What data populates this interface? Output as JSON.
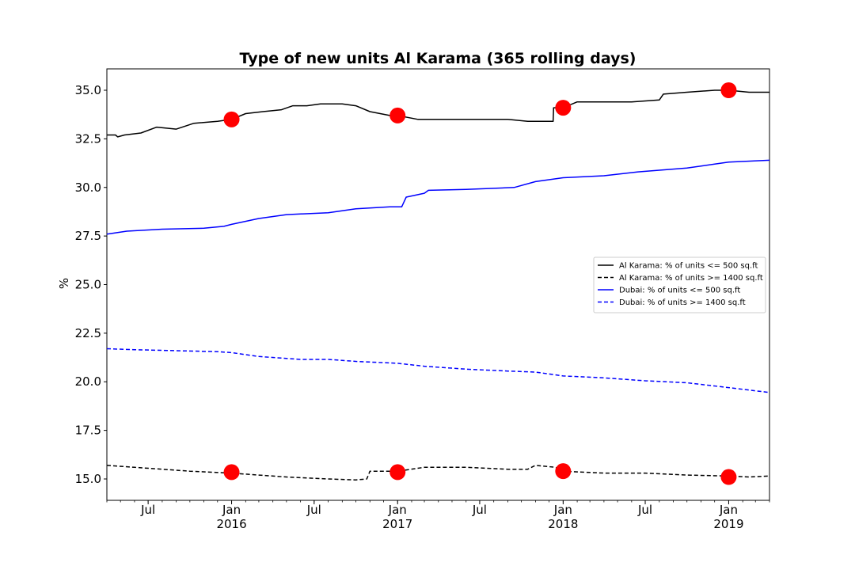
{
  "chart_data": {
    "type": "line",
    "title": "Type of new units Al Karama (365 rolling days)",
    "xlabel": "",
    "ylabel": "%",
    "xlim": [
      "2015-04-01",
      "2019-04-01"
    ],
    "ylim": [
      13.9,
      36.1
    ],
    "y_ticks": [
      {
        "value": 15.0,
        "label": "15.0"
      },
      {
        "value": 17.5,
        "label": "17.5"
      },
      {
        "value": 20.0,
        "label": "20.0"
      },
      {
        "value": 22.5,
        "label": "22.5"
      },
      {
        "value": 25.0,
        "label": "25.0"
      },
      {
        "value": 27.5,
        "label": "27.5"
      },
      {
        "value": 30.0,
        "label": "30.0"
      },
      {
        "value": 32.5,
        "label": "32.5"
      },
      {
        "value": 35.0,
        "label": "35.0"
      }
    ],
    "x_ticks": [
      {
        "date": "2015-07-01",
        "label": "Jul",
        "sublabel": ""
      },
      {
        "date": "2016-01-01",
        "label": "Jan",
        "sublabel": "2016"
      },
      {
        "date": "2016-07-01",
        "label": "Jul",
        "sublabel": ""
      },
      {
        "date": "2017-01-01",
        "label": "Jan",
        "sublabel": "2017"
      },
      {
        "date": "2017-07-01",
        "label": "Jul",
        "sublabel": ""
      },
      {
        "date": "2018-01-01",
        "label": "Jan",
        "sublabel": "2018"
      },
      {
        "date": "2018-07-01",
        "label": "Jul",
        "sublabel": ""
      },
      {
        "date": "2019-01-01",
        "label": "Jan",
        "sublabel": "2019"
      }
    ],
    "grid": false,
    "legend_position": "center-right",
    "series": [
      {
        "name": "Al Karama: % of units <= 500 sq.ft",
        "color": "#000000",
        "style": "solid",
        "points": [
          [
            "2015-04-01",
            32.7
          ],
          [
            "2015-04-20",
            32.7
          ],
          [
            "2015-04-25",
            32.6
          ],
          [
            "2015-05-10",
            32.7
          ],
          [
            "2015-06-15",
            32.8
          ],
          [
            "2015-07-20",
            33.1
          ],
          [
            "2015-09-01",
            33.0
          ],
          [
            "2015-10-10",
            33.3
          ],
          [
            "2015-12-01",
            33.4
          ],
          [
            "2016-01-01",
            33.5
          ],
          [
            "2016-02-01",
            33.8
          ],
          [
            "2016-03-10",
            33.9
          ],
          [
            "2016-04-20",
            34.0
          ],
          [
            "2016-05-15",
            34.2
          ],
          [
            "2016-06-15",
            34.2
          ],
          [
            "2016-07-15",
            34.3
          ],
          [
            "2016-09-01",
            34.3
          ],
          [
            "2016-10-01",
            34.2
          ],
          [
            "2016-11-01",
            33.9
          ],
          [
            "2016-12-15",
            33.7
          ],
          [
            "2017-01-01",
            33.7
          ],
          [
            "2017-02-15",
            33.5
          ],
          [
            "2017-04-01",
            33.5
          ],
          [
            "2017-06-01",
            33.5
          ],
          [
            "2017-07-15",
            33.5
          ],
          [
            "2017-09-01",
            33.5
          ],
          [
            "2017-10-15",
            33.4
          ],
          [
            "2017-11-15",
            33.4
          ],
          [
            "2017-12-10",
            33.4
          ],
          [
            "2017-12-11",
            34.1
          ],
          [
            "2018-01-01",
            34.1
          ],
          [
            "2018-02-01",
            34.4
          ],
          [
            "2018-04-01",
            34.4
          ],
          [
            "2018-06-01",
            34.4
          ],
          [
            "2018-08-01",
            34.5
          ],
          [
            "2018-08-10",
            34.8
          ],
          [
            "2018-10-01",
            34.9
          ],
          [
            "2018-12-01",
            35.0
          ],
          [
            "2019-01-01",
            35.0
          ],
          [
            "2019-02-15",
            34.9
          ],
          [
            "2019-04-01",
            34.9
          ]
        ]
      },
      {
        "name": "Al Karama: % of units >= 1400 sq.ft",
        "color": "#000000",
        "style": "dashed",
        "points": [
          [
            "2015-04-01",
            15.7
          ],
          [
            "2015-06-01",
            15.6
          ],
          [
            "2015-08-01",
            15.5
          ],
          [
            "2015-10-01",
            15.4
          ],
          [
            "2016-01-01",
            15.3
          ],
          [
            "2016-03-01",
            15.2
          ],
          [
            "2016-05-01",
            15.1
          ],
          [
            "2016-08-01",
            15.0
          ],
          [
            "2016-10-01",
            14.95
          ],
          [
            "2016-10-25",
            15.0
          ],
          [
            "2016-11-01",
            15.4
          ],
          [
            "2016-12-15",
            15.4
          ],
          [
            "2017-01-01",
            15.4
          ],
          [
            "2017-03-01",
            15.6
          ],
          [
            "2017-06-01",
            15.6
          ],
          [
            "2017-09-01",
            15.5
          ],
          [
            "2017-10-15",
            15.5
          ],
          [
            "2017-11-01",
            15.7
          ],
          [
            "2017-12-15",
            15.6
          ],
          [
            "2018-01-01",
            15.4
          ],
          [
            "2018-04-01",
            15.3
          ],
          [
            "2018-07-01",
            15.3
          ],
          [
            "2018-10-01",
            15.2
          ],
          [
            "2019-01-01",
            15.15
          ],
          [
            "2019-02-15",
            15.1
          ],
          [
            "2019-04-01",
            15.15
          ]
        ]
      },
      {
        "name": "Dubai: % of units <= 500 sq.ft",
        "color": "#0000ff",
        "style": "solid",
        "points": [
          [
            "2015-04-01",
            27.6
          ],
          [
            "2015-05-15",
            27.75
          ],
          [
            "2015-08-01",
            27.85
          ],
          [
            "2015-11-01",
            27.9
          ],
          [
            "2015-12-15",
            28.0
          ],
          [
            "2016-01-01",
            28.1
          ],
          [
            "2016-03-01",
            28.4
          ],
          [
            "2016-05-01",
            28.6
          ],
          [
            "2016-08-01",
            28.7
          ],
          [
            "2016-10-01",
            28.9
          ],
          [
            "2016-12-15",
            29.0
          ],
          [
            "2017-01-10",
            29.0
          ],
          [
            "2017-01-20",
            29.5
          ],
          [
            "2017-03-01",
            29.7
          ],
          [
            "2017-03-10",
            29.85
          ],
          [
            "2017-06-01",
            29.9
          ],
          [
            "2017-09-15",
            30.0
          ],
          [
            "2017-11-01",
            30.3
          ],
          [
            "2018-01-01",
            30.5
          ],
          [
            "2018-04-01",
            30.6
          ],
          [
            "2018-06-15",
            30.8
          ],
          [
            "2018-10-01",
            31.0
          ],
          [
            "2018-12-01",
            31.2
          ],
          [
            "2019-01-01",
            31.3
          ],
          [
            "2019-04-01",
            31.4
          ]
        ]
      },
      {
        "name": "Dubai: % of units >= 1400 sq.ft",
        "color": "#0000ff",
        "style": "dashed",
        "points": [
          [
            "2015-04-01",
            21.7
          ],
          [
            "2015-06-01",
            21.65
          ],
          [
            "2015-09-01",
            21.6
          ],
          [
            "2015-12-01",
            21.55
          ],
          [
            "2016-01-01",
            21.5
          ],
          [
            "2016-03-01",
            21.3
          ],
          [
            "2016-06-01",
            21.15
          ],
          [
            "2016-08-01",
            21.15
          ],
          [
            "2016-10-01",
            21.05
          ],
          [
            "2017-01-01",
            20.95
          ],
          [
            "2017-03-01",
            20.8
          ],
          [
            "2017-06-01",
            20.65
          ],
          [
            "2017-09-01",
            20.55
          ],
          [
            "2017-11-01",
            20.5
          ],
          [
            "2018-01-01",
            20.3
          ],
          [
            "2018-04-01",
            20.2
          ],
          [
            "2018-07-01",
            20.05
          ],
          [
            "2018-10-01",
            19.95
          ],
          [
            "2019-01-01",
            19.7
          ],
          [
            "2019-04-01",
            19.45
          ]
        ]
      }
    ],
    "markers": {
      "color": "#ff0000",
      "points": [
        [
          "2016-01-01",
          33.5
        ],
        [
          "2017-01-01",
          33.7
        ],
        [
          "2018-01-01",
          34.1
        ],
        [
          "2019-01-01",
          35.0
        ],
        [
          "2016-01-01",
          15.35
        ],
        [
          "2017-01-01",
          15.35
        ],
        [
          "2018-01-01",
          15.4
        ],
        [
          "2019-01-01",
          15.1
        ]
      ]
    }
  }
}
